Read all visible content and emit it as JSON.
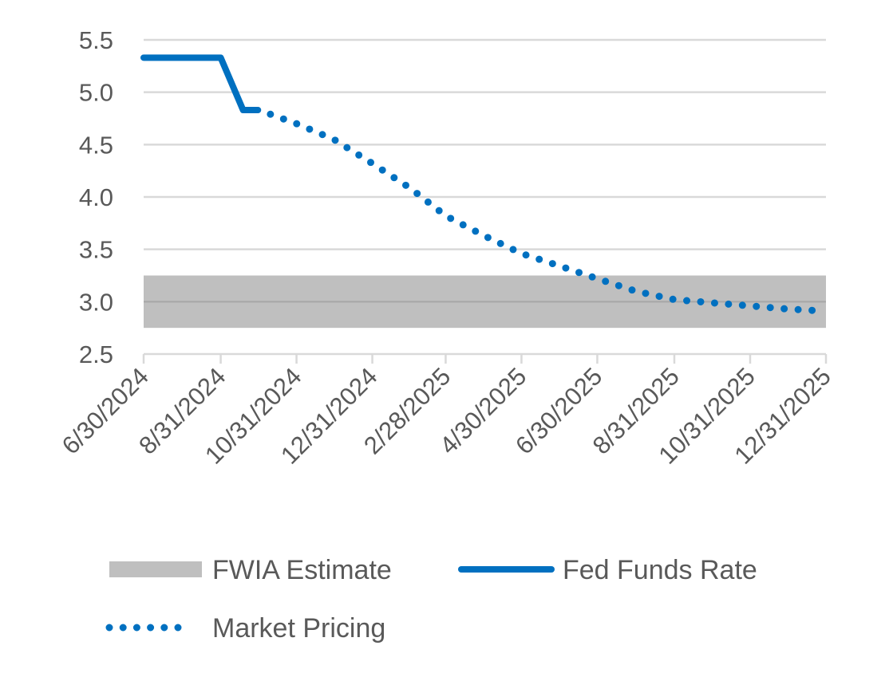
{
  "chart_data": {
    "type": "line",
    "title": "",
    "xlabel": "",
    "ylabel": "",
    "ylim": [
      2.5,
      5.5
    ],
    "yticks": [
      "2.5",
      "3.0",
      "3.5",
      "4.0",
      "4.5",
      "5.0",
      "5.5"
    ],
    "xlim": [
      "2024-06-30",
      "2025-12-31"
    ],
    "xticks": [
      {
        "date": "2024-06-30",
        "label": "6/30/2024"
      },
      {
        "date": "2024-08-31",
        "label": "8/31/2024"
      },
      {
        "date": "2024-10-31",
        "label": "10/31/2024"
      },
      {
        "date": "2024-12-31",
        "label": "12/31/2024"
      },
      {
        "date": "2025-02-28",
        "label": "2/28/2025"
      },
      {
        "date": "2025-04-30",
        "label": "4/30/2025"
      },
      {
        "date": "2025-06-30",
        "label": "6/30/2025"
      },
      {
        "date": "2025-08-31",
        "label": "8/31/2025"
      },
      {
        "date": "2025-10-31",
        "label": "10/31/2025"
      },
      {
        "date": "2025-12-31",
        "label": "12/31/2025"
      }
    ],
    "grid": true,
    "legend_position": "bottom",
    "series": [
      {
        "name": "FWIA Estimate",
        "kind": "band",
        "color": "#bfbfbf",
        "low": 2.75,
        "high": 3.25
      },
      {
        "name": "Fed Funds Rate",
        "kind": "solid",
        "color": "#0070c0",
        "x": [
          "2024-06-30",
          "2024-08-31",
          "2024-09-18",
          "2024-09-30"
        ],
        "y": [
          5.33,
          5.33,
          4.83,
          4.83
        ]
      },
      {
        "name": "Market Pricing",
        "kind": "dotted",
        "color": "#0070c0",
        "x": [
          "2024-10-10",
          "2024-10-31",
          "2024-11-30",
          "2024-12-31",
          "2025-01-31",
          "2025-02-28",
          "2025-03-31",
          "2025-04-30",
          "2025-05-31",
          "2025-06-30",
          "2025-07-31",
          "2025-08-31",
          "2025-09-30",
          "2025-10-31",
          "2025-11-30",
          "2025-12-31"
        ],
        "y": [
          4.79,
          4.7,
          4.55,
          4.32,
          4.08,
          3.82,
          3.63,
          3.46,
          3.34,
          3.22,
          3.1,
          3.02,
          2.99,
          2.96,
          2.93,
          2.91
        ]
      }
    ]
  }
}
